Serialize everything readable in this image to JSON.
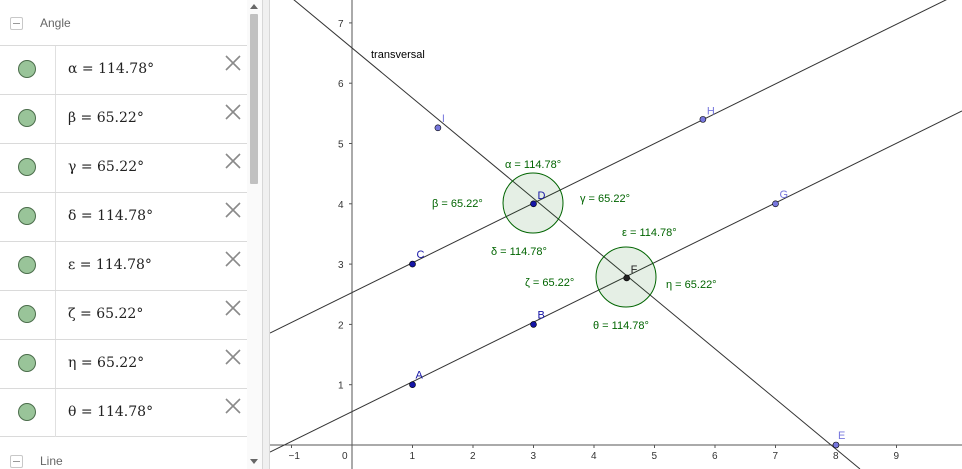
{
  "algebra_view": {
    "angle_category": "Angle",
    "line_category": "Line",
    "angles": [
      {
        "symbol": "α",
        "value": "114.78°"
      },
      {
        "symbol": "β",
        "value": "65.22°"
      },
      {
        "symbol": "γ",
        "value": "65.22°"
      },
      {
        "symbol": "δ",
        "value": "114.78°"
      },
      {
        "symbol": "ε",
        "value": "114.78°"
      },
      {
        "symbol": "ζ",
        "value": "65.22°"
      },
      {
        "symbol": "η",
        "value": "65.22°"
      },
      {
        "symbol": "θ",
        "value": "114.78°"
      }
    ],
    "icons": {
      "marble": "visibility-marble-icon",
      "delete": "close-icon"
    }
  },
  "graphics_view": {
    "x_ticks": [
      "−1",
      "0",
      "1",
      "2",
      "3",
      "4",
      "5",
      "6",
      "7",
      "8",
      "9"
    ],
    "y_ticks": [
      "1",
      "2",
      "3",
      "4",
      "5",
      "6",
      "7"
    ],
    "transversal_label": "transversal",
    "points": [
      {
        "name": "A",
        "x": 1,
        "y": 1
      },
      {
        "name": "B",
        "x": 3,
        "y": 2
      },
      {
        "name": "C",
        "x": 1,
        "y": 3
      },
      {
        "name": "D",
        "x": 3,
        "y": 4
      },
      {
        "name": "E",
        "x": 8,
        "y": 0
      },
      {
        "name": "F",
        "x": 4.54,
        "y": 2.77
      },
      {
        "name": "G",
        "x": 7,
        "y": 4
      },
      {
        "name": "H",
        "x": 5.8,
        "y": 5.4
      },
      {
        "name": "I",
        "x": 1.42,
        "y": 5.26
      }
    ],
    "angle_labels": [
      {
        "text": "α = 114.78°"
      },
      {
        "text": "β = 65.22°"
      },
      {
        "text": "γ = 65.22°"
      },
      {
        "text": "δ = 114.78°"
      },
      {
        "text": "ε = 114.78°"
      },
      {
        "text": "ζ = 65.22°"
      },
      {
        "text": "η = 65.22°"
      },
      {
        "text": "θ = 114.78°"
      }
    ],
    "colors": {
      "angle": "#006400",
      "point_dark": "#1515a6",
      "point_light": "#7777dd",
      "axis": "#555555",
      "line": "#333333"
    }
  }
}
